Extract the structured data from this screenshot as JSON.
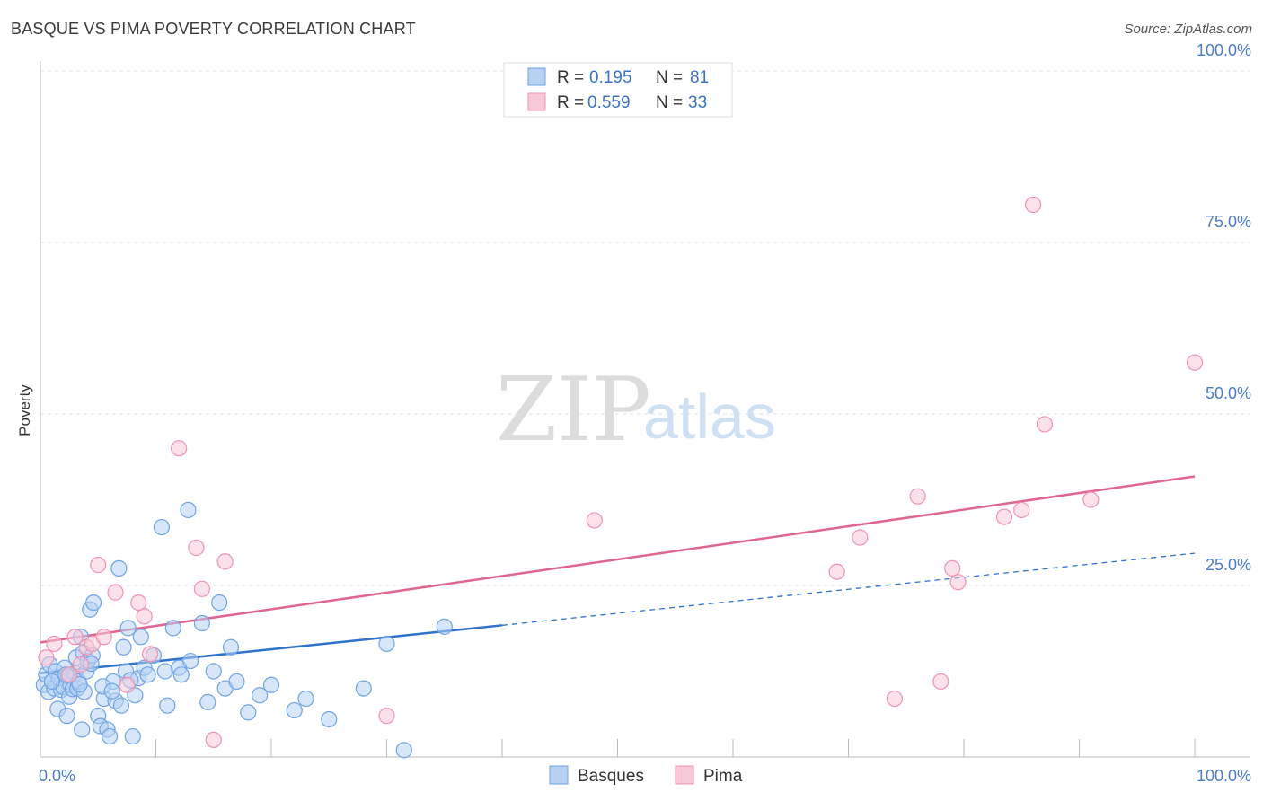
{
  "title": "BASQUE VS PIMA POVERTY CORRELATION CHART",
  "source": "Source: ZipAtlas.com",
  "watermark": {
    "zip": "ZIP",
    "atlas": "atlas"
  },
  "chart_data": {
    "type": "scatter",
    "ylabel": "Poverty",
    "xlim": [
      0,
      100
    ],
    "ylim": [
      0,
      100
    ],
    "x_tick_labels": {
      "min": "0.0%",
      "max": "100.0%"
    },
    "y_ticks": [
      {
        "value": 25,
        "label": "25.0%"
      },
      {
        "value": 50,
        "label": "50.0%"
      },
      {
        "value": 75,
        "label": "75.0%"
      },
      {
        "value": 100,
        "label": "100.0%"
      }
    ],
    "grid": true,
    "legend_top": {
      "position": "top-center",
      "rows": [
        {
          "r_label": "R =",
          "r_value": "0.195",
          "n_label": "N =",
          "n_value": "81"
        },
        {
          "r_label": "R =",
          "r_value": "0.559",
          "n_label": "N =",
          "n_value": "33"
        }
      ]
    },
    "series": [
      {
        "name": "Basques",
        "color": "#6fa3e6",
        "fill": "#b7d1f3",
        "line_color": "#2f72cc",
        "trend": {
          "x0": 0,
          "y0": 12.2,
          "x1": 40,
          "y1": 19.2,
          "x_dash_end": 100,
          "y_dash_end": 29.7
        },
        "points": [
          [
            0.3,
            10.5
          ],
          [
            0.5,
            12.0
          ],
          [
            0.7,
            9.5
          ],
          [
            0.8,
            13.5
          ],
          [
            1.0,
            11.0
          ],
          [
            1.2,
            10.0
          ],
          [
            1.3,
            12.5
          ],
          [
            1.5,
            7.0
          ],
          [
            1.6,
            11.5
          ],
          [
            1.8,
            9.8
          ],
          [
            2.0,
            10.2
          ],
          [
            2.1,
            13.0
          ],
          [
            2.3,
            6.0
          ],
          [
            2.4,
            11.8
          ],
          [
            2.5,
            8.8
          ],
          [
            2.6,
            10.5
          ],
          [
            2.8,
            9.9
          ],
          [
            3.0,
            12.2
          ],
          [
            3.1,
            14.5
          ],
          [
            3.2,
            10.0
          ],
          [
            3.3,
            11.0
          ],
          [
            3.5,
            17.5
          ],
          [
            3.6,
            4.0
          ],
          [
            3.7,
            15.2
          ],
          [
            3.8,
            9.5
          ],
          [
            4.0,
            12.5
          ],
          [
            4.1,
            14.0
          ],
          [
            4.3,
            21.5
          ],
          [
            4.5,
            14.8
          ],
          [
            4.6,
            22.5
          ],
          [
            5.0,
            6.0
          ],
          [
            5.2,
            4.5
          ],
          [
            5.5,
            8.5
          ],
          [
            5.8,
            4.0
          ],
          [
            6.0,
            3.0
          ],
          [
            6.3,
            11.0
          ],
          [
            6.5,
            8.2
          ],
          [
            6.8,
            27.5
          ],
          [
            7.0,
            7.5
          ],
          [
            7.2,
            16.0
          ],
          [
            7.4,
            12.5
          ],
          [
            7.6,
            18.8
          ],
          [
            8.0,
            3.0
          ],
          [
            8.2,
            9.0
          ],
          [
            8.5,
            11.5
          ],
          [
            8.7,
            17.5
          ],
          [
            9.0,
            13.0
          ],
          [
            9.3,
            12.0
          ],
          [
            10.5,
            33.5
          ],
          [
            10.8,
            12.5
          ],
          [
            11.0,
            7.5
          ],
          [
            11.5,
            18.8
          ],
          [
            12.0,
            13.0
          ],
          [
            12.8,
            36.0
          ],
          [
            13.0,
            14.0
          ],
          [
            14.0,
            19.5
          ],
          [
            14.5,
            8.0
          ],
          [
            15.0,
            12.5
          ],
          [
            15.5,
            22.5
          ],
          [
            16.0,
            10.0
          ],
          [
            17.0,
            11.0
          ],
          [
            18.0,
            6.5
          ],
          [
            19.0,
            9.0
          ],
          [
            20.0,
            10.5
          ],
          [
            23.0,
            8.5
          ],
          [
            25.0,
            5.5
          ],
          [
            28.0,
            10.0
          ],
          [
            30.0,
            16.5
          ],
          [
            31.5,
            1.0
          ],
          [
            35.0,
            19.0
          ],
          [
            1.0,
            11.0
          ],
          [
            2.2,
            12.0
          ],
          [
            3.4,
            10.6
          ],
          [
            4.4,
            13.6
          ],
          [
            5.4,
            10.3
          ],
          [
            6.2,
            9.6
          ],
          [
            7.8,
            11.2
          ],
          [
            9.8,
            14.8
          ],
          [
            12.2,
            12.0
          ],
          [
            16.5,
            16.0
          ],
          [
            22.0,
            6.8
          ]
        ]
      },
      {
        "name": "Pima",
        "color": "#ee94b0",
        "fill": "#f7c8d7",
        "line_color": "#e06592",
        "trend": {
          "x0": 0,
          "y0": 16.7,
          "x1": 100,
          "y1": 40.9
        },
        "points": [
          [
            0.5,
            14.5
          ],
          [
            1.2,
            16.5
          ],
          [
            2.5,
            12.0
          ],
          [
            3.0,
            17.5
          ],
          [
            3.5,
            13.5
          ],
          [
            4.0,
            16.0
          ],
          [
            4.5,
            16.5
          ],
          [
            5.0,
            28.0
          ],
          [
            5.5,
            17.5
          ],
          [
            6.5,
            24.0
          ],
          [
            7.5,
            10.5
          ],
          [
            8.5,
            22.5
          ],
          [
            9.0,
            20.5
          ],
          [
            9.5,
            15.0
          ],
          [
            12.0,
            45.0
          ],
          [
            13.5,
            30.5
          ],
          [
            14.0,
            24.5
          ],
          [
            15.0,
            2.5
          ],
          [
            16.0,
            28.5
          ],
          [
            30.0,
            6.0
          ],
          [
            48.0,
            34.5
          ],
          [
            69.0,
            27.0
          ],
          [
            71.0,
            32.0
          ],
          [
            74.0,
            8.5
          ],
          [
            76.0,
            38.0
          ],
          [
            78.0,
            11.0
          ],
          [
            79.0,
            27.5
          ],
          [
            79.5,
            25.5
          ],
          [
            83.5,
            35.0
          ],
          [
            85.0,
            36.0
          ],
          [
            86.0,
            80.5
          ],
          [
            87.0,
            48.5
          ],
          [
            91.0,
            37.5
          ]
        ]
      }
    ],
    "extra_pima_point": [
      100,
      57.5
    ]
  }
}
